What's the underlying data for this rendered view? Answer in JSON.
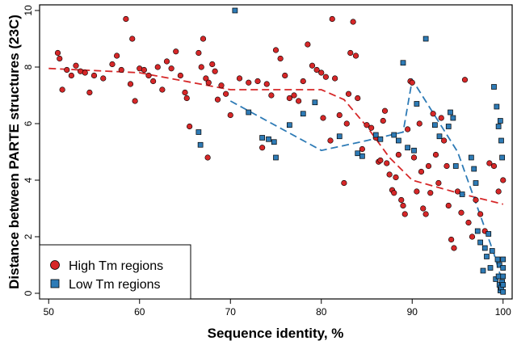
{
  "chart_data": {
    "type": "scatter",
    "title": "",
    "xlabel": "Sequence identity, %",
    "ylabel": "Distance between PARTE structures (23C)",
    "xlim": [
      49,
      101
    ],
    "ylim": [
      -0.2,
      10.2
    ],
    "xticks": [
      50,
      60,
      70,
      80,
      90,
      100
    ],
    "yticks": [
      0,
      2,
      4,
      6,
      8,
      10
    ],
    "legend_position": "bottom-left",
    "series": [
      {
        "name": "High Tm regions",
        "marker": "circle",
        "color": "#d62728",
        "points": [
          [
            51,
            8.5
          ],
          [
            51.2,
            8.3
          ],
          [
            51.5,
            7.2
          ],
          [
            52,
            7.9
          ],
          [
            52.5,
            7.7
          ],
          [
            53,
            8.05
          ],
          [
            53.5,
            7.85
          ],
          [
            54,
            7.8
          ],
          [
            54.5,
            7.1
          ],
          [
            55,
            7.7
          ],
          [
            56,
            7.6
          ],
          [
            57,
            8.1
          ],
          [
            57.5,
            8.4
          ],
          [
            58,
            7.9
          ],
          [
            58.5,
            9.7
          ],
          [
            59,
            7.4
          ],
          [
            59.2,
            9.0
          ],
          [
            59.5,
            6.8
          ],
          [
            60,
            7.95
          ],
          [
            60.5,
            7.9
          ],
          [
            61,
            7.7
          ],
          [
            61.5,
            7.5
          ],
          [
            62,
            8.0
          ],
          [
            62.5,
            7.2
          ],
          [
            63,
            8.2
          ],
          [
            63.5,
            7.95
          ],
          [
            64,
            8.55
          ],
          [
            64.5,
            7.7
          ],
          [
            65,
            7.1
          ],
          [
            65.2,
            6.9
          ],
          [
            65.5,
            5.9
          ],
          [
            66.5,
            8.5
          ],
          [
            66.8,
            8.0
          ],
          [
            67,
            9.0
          ],
          [
            67.3,
            7.6
          ],
          [
            67.6,
            7.45
          ],
          [
            68,
            8.1
          ],
          [
            68.3,
            7.85
          ],
          [
            68.6,
            6.85
          ],
          [
            69,
            7.35
          ],
          [
            69.5,
            7.05
          ],
          [
            70,
            6.3
          ],
          [
            67.5,
            4.8
          ],
          [
            71,
            7.6
          ],
          [
            72,
            7.45
          ],
          [
            73,
            7.5
          ],
          [
            73.5,
            5.15
          ],
          [
            74,
            7.4
          ],
          [
            74.5,
            7.0
          ],
          [
            75,
            8.6
          ],
          [
            75.5,
            8.3
          ],
          [
            76,
            7.7
          ],
          [
            76.5,
            6.9
          ],
          [
            77,
            7.0
          ],
          [
            77.5,
            6.8
          ],
          [
            78,
            7.5
          ],
          [
            78.5,
            8.8
          ],
          [
            79,
            8.05
          ],
          [
            79.5,
            7.9
          ],
          [
            80,
            7.8
          ],
          [
            80.2,
            6.2
          ],
          [
            80.5,
            7.65
          ],
          [
            81,
            5.4
          ],
          [
            81.2,
            9.7
          ],
          [
            81.5,
            7.6
          ],
          [
            82,
            6.3
          ],
          [
            82.5,
            3.9
          ],
          [
            82.8,
            6.0
          ],
          [
            83,
            7.05
          ],
          [
            83.2,
            8.5
          ],
          [
            83.5,
            9.6
          ],
          [
            83.8,
            8.4
          ],
          [
            84,
            6.9
          ],
          [
            84.5,
            5.1
          ],
          [
            85,
            5.95
          ],
          [
            85.5,
            5.85
          ],
          [
            86,
            5.5
          ],
          [
            86.3,
            4.65
          ],
          [
            86.5,
            4.7
          ],
          [
            86.8,
            6.1
          ],
          [
            87,
            6.45
          ],
          [
            87.2,
            4.6
          ],
          [
            87.5,
            4.2
          ],
          [
            87.8,
            3.65
          ],
          [
            88,
            3.55
          ],
          [
            88.2,
            4.1
          ],
          [
            88.5,
            4.9
          ],
          [
            88.8,
            3.3
          ],
          [
            89,
            3.1
          ],
          [
            89.2,
            2.8
          ],
          [
            89.5,
            5.8
          ],
          [
            89.8,
            7.5
          ],
          [
            90,
            7.45
          ],
          [
            90.2,
            4.8
          ],
          [
            90.5,
            3.6
          ],
          [
            90.8,
            6.0
          ],
          [
            91,
            4.3
          ],
          [
            91.2,
            3.0
          ],
          [
            91.5,
            2.8
          ],
          [
            91.8,
            4.5
          ],
          [
            92,
            3.55
          ],
          [
            92.3,
            6.35
          ],
          [
            92.6,
            4.9
          ],
          [
            92.9,
            3.9
          ],
          [
            93.2,
            6.2
          ],
          [
            93.5,
            5.4
          ],
          [
            93.8,
            4.5
          ],
          [
            94,
            3.1
          ],
          [
            94.3,
            1.9
          ],
          [
            94.6,
            1.6
          ],
          [
            95,
            3.6
          ],
          [
            95.4,
            2.85
          ],
          [
            95.8,
            7.55
          ],
          [
            96.2,
            2.5
          ],
          [
            96.6,
            2.0
          ],
          [
            97,
            3.3
          ],
          [
            97.5,
            2.8
          ],
          [
            98,
            2.2
          ],
          [
            98.5,
            4.6
          ],
          [
            99,
            4.5
          ],
          [
            99.5,
            3.6
          ],
          [
            100,
            4.0
          ]
        ]
      },
      {
        "name": "Low Tm regions",
        "marker": "square",
        "color": "#2e7bb6",
        "points": [
          [
            66.5,
            5.7
          ],
          [
            66.7,
            5.25
          ],
          [
            70.5,
            10.0
          ],
          [
            72,
            6.4
          ],
          [
            73.5,
            5.5
          ],
          [
            74.2,
            5.45
          ],
          [
            74.8,
            5.35
          ],
          [
            75,
            4.8
          ],
          [
            76.5,
            5.95
          ],
          [
            78,
            6.35
          ],
          [
            79.3,
            6.75
          ],
          [
            82,
            5.55
          ],
          [
            84,
            4.95
          ],
          [
            84.5,
            4.85
          ],
          [
            86,
            5.6
          ],
          [
            86.5,
            5.45
          ],
          [
            88,
            5.6
          ],
          [
            88.5,
            5.4
          ],
          [
            89,
            8.15
          ],
          [
            89.5,
            5.15
          ],
          [
            90.2,
            5.05
          ],
          [
            90.5,
            6.7
          ],
          [
            91.5,
            9.0
          ],
          [
            92.5,
            5.95
          ],
          [
            93,
            5.55
          ],
          [
            94,
            5.9
          ],
          [
            94.2,
            6.4
          ],
          [
            94.5,
            6.2
          ],
          [
            94.8,
            4.5
          ],
          [
            95.5,
            3.5
          ],
          [
            96.5,
            4.8
          ],
          [
            96.8,
            4.4
          ],
          [
            97,
            3.9
          ],
          [
            97.2,
            2.2
          ],
          [
            97.5,
            1.8
          ],
          [
            97.8,
            0.8
          ],
          [
            98,
            1.6
          ],
          [
            98.2,
            1.3
          ],
          [
            98.4,
            2.1
          ],
          [
            98.6,
            0.9
          ],
          [
            98.8,
            1.5
          ],
          [
            99,
            7.3
          ],
          [
            99.2,
            0.5
          ],
          [
            99.3,
            6.6
          ],
          [
            99.4,
            1.2
          ],
          [
            99.5,
            0.6
          ],
          [
            99.5,
            5.9
          ],
          [
            99.6,
            0.3
          ],
          [
            99.6,
            1.0
          ],
          [
            99.7,
            6.1
          ],
          [
            99.7,
            0.1
          ],
          [
            99.8,
            5.4
          ],
          [
            99.8,
            0.2
          ],
          [
            99.9,
            4.8
          ],
          [
            99.9,
            0.4
          ],
          [
            100,
            1.2
          ],
          [
            100,
            0.9
          ],
          [
            100,
            0.6
          ],
          [
            100,
            0.3
          ],
          [
            100,
            0.05
          ]
        ]
      }
    ],
    "trend_lines": [
      {
        "series": "High Tm regions",
        "style": "dashed",
        "color": "#d62728",
        "points": [
          [
            50,
            7.95
          ],
          [
            60,
            7.8
          ],
          [
            70,
            7.2
          ],
          [
            80,
            7.2
          ],
          [
            82.5,
            6.85
          ],
          [
            85,
            5.9
          ],
          [
            87.5,
            4.8
          ],
          [
            90,
            4.0
          ],
          [
            95,
            3.55
          ],
          [
            100,
            3.15
          ]
        ]
      },
      {
        "series": "Low Tm regions",
        "style": "dashed",
        "color": "#2e7bb6",
        "points": [
          [
            70,
            6.8
          ],
          [
            80,
            5.05
          ],
          [
            85,
            5.4
          ],
          [
            89,
            5.7
          ],
          [
            90,
            7.55
          ],
          [
            95,
            5.0
          ],
          [
            99,
            1.4
          ],
          [
            100,
            0.3
          ]
        ]
      }
    ]
  }
}
